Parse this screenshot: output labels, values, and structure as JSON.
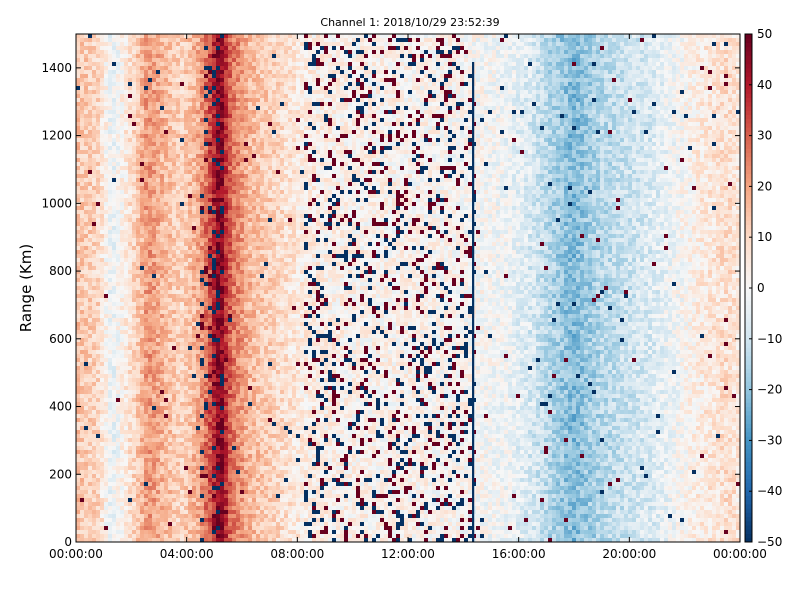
{
  "chart_data": {
    "type": "heatmap",
    "title": "Channel 1: 2018/10/29 23:52:39",
    "xlabel": "",
    "ylabel": "Range (Km)",
    "x_ticks": [
      "00:00:00",
      "04:00:00",
      "08:00:00",
      "12:00:00",
      "16:00:00",
      "20:00:00",
      "00:00:00"
    ],
    "xlim_hours": [
      0,
      24
    ],
    "y_ticks": [
      0,
      200,
      400,
      600,
      800,
      1000,
      1200,
      1400
    ],
    "ylim": [
      0,
      1500
    ],
    "colorbar": {
      "colormap": "RdBu_r",
      "range": [
        -50,
        50
      ],
      "ticks": [
        -50,
        -40,
        -30,
        -20,
        -10,
        0,
        10,
        20,
        30,
        40,
        50
      ]
    },
    "grid": false,
    "colors": {
      "low": "#053061",
      "mid": "#f7f7f7",
      "high": "#67001f"
    },
    "column_profile": [
      {
        "hour": 0.0,
        "value": 14
      },
      {
        "hour": 0.8,
        "value": 10
      },
      {
        "hour": 1.3,
        "value": -4
      },
      {
        "hour": 2.0,
        "value": 8
      },
      {
        "hour": 2.6,
        "value": 22
      },
      {
        "hour": 3.2,
        "value": 16
      },
      {
        "hour": 3.8,
        "value": 10
      },
      {
        "hour": 4.4,
        "value": 18
      },
      {
        "hour": 4.9,
        "value": 34
      },
      {
        "hour": 5.2,
        "value": 48
      },
      {
        "hour": 5.6,
        "value": 28
      },
      {
        "hour": 6.3,
        "value": 16
      },
      {
        "hour": 7.2,
        "value": 10
      },
      {
        "hour": 8.2,
        "value": 4
      },
      {
        "hour": 10.0,
        "value": 2
      },
      {
        "hour": 12.0,
        "value": 2
      },
      {
        "hour": 14.5,
        "value": 0
      },
      {
        "hour": 15.5,
        "value": -2
      },
      {
        "hour": 16.5,
        "value": -8
      },
      {
        "hour": 17.5,
        "value": -18
      },
      {
        "hour": 18.0,
        "value": -22
      },
      {
        "hour": 19.0,
        "value": -14
      },
      {
        "hour": 20.0,
        "value": -10
      },
      {
        "hour": 21.0,
        "value": -6
      },
      {
        "hour": 22.5,
        "value": 4
      },
      {
        "hour": 23.5,
        "value": 8
      },
      {
        "hour": 24.0,
        "value": 6
      }
    ],
    "noise_bands_hours": [
      [
        4.5,
        5.3
      ],
      [
        8.3,
        14.5
      ]
    ],
    "vertical_lines_hours": [
      14.35
    ]
  }
}
